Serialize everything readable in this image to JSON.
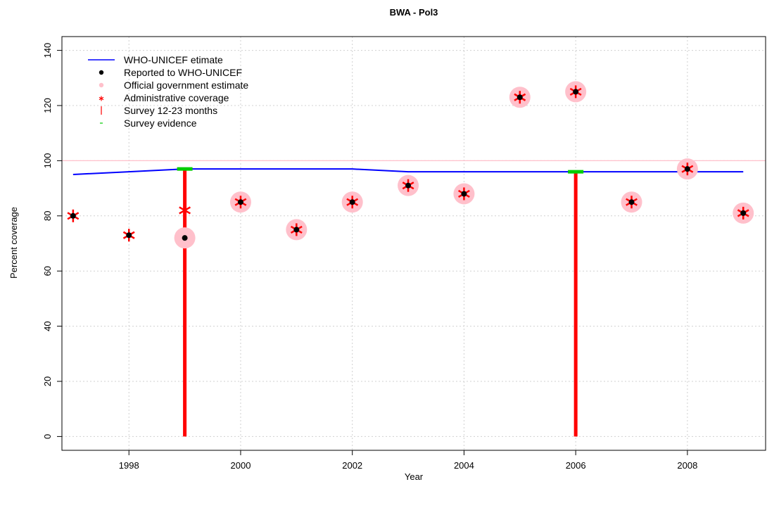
{
  "chart_data": {
    "type": "scatter",
    "title": "BWA  -  Pol3",
    "xlabel": "Year",
    "ylabel": "Percent coverage",
    "xlim": [
      1996.8,
      2009.4
    ],
    "ylim": [
      -5,
      145
    ],
    "x_ticks": [
      1998,
      2000,
      2002,
      2004,
      2006,
      2008
    ],
    "y_ticks": [
      0,
      20,
      40,
      60,
      80,
      100,
      120,
      140
    ],
    "grid": true,
    "legend_position": "top-left",
    "reference_line": {
      "y": 100,
      "color": "#ffc0cb"
    },
    "legend": [
      {
        "label": "WHO-UNICEF etimate",
        "symbol": "line",
        "color": "#0000ff"
      },
      {
        "label": "Reported to WHO-UNICEF",
        "symbol": "dot",
        "color": "#000000"
      },
      {
        "label": "Official government estimate",
        "symbol": "dot",
        "color": "#ffc0cb"
      },
      {
        "label": "Administrative coverage",
        "symbol": "star",
        "color": "#ff0000"
      },
      {
        "label": "Survey 12-23 months",
        "symbol": "bar",
        "color": "#ff0000"
      },
      {
        "label": "Survey evidence",
        "symbol": "dash",
        "color": "#00cc00"
      }
    ],
    "series": [
      {
        "name": "WHO-UNICEF etimate",
        "kind": "line",
        "color": "#0000ff",
        "x": [
          1997,
          1998,
          1999,
          2000,
          2001,
          2002,
          2003,
          2004,
          2005,
          2006,
          2007,
          2008,
          2009
        ],
        "values": [
          95,
          96,
          97,
          97,
          97,
          97,
          96,
          96,
          96,
          96,
          96,
          96,
          96
        ]
      },
      {
        "name": "Reported to WHO-UNICEF",
        "kind": "point",
        "color": "#000000",
        "x": [
          1997,
          1998,
          1999,
          2000,
          2001,
          2002,
          2003,
          2004,
          2005,
          2006,
          2007,
          2008,
          2009
        ],
        "values": [
          80,
          73,
          72,
          85,
          75,
          85,
          91,
          88,
          123,
          125,
          85,
          97,
          81
        ]
      },
      {
        "name": "Official government estimate",
        "kind": "point",
        "color": "#ffc0cb",
        "x": [
          1999,
          2000,
          2001,
          2002,
          2003,
          2004,
          2005,
          2006,
          2007,
          2008,
          2009
        ],
        "values": [
          72,
          85,
          75,
          85,
          91,
          88,
          123,
          125,
          85,
          97,
          81
        ]
      },
      {
        "name": "Administrative coverage",
        "kind": "star",
        "color": "#ff0000",
        "x": [
          1997,
          1998,
          1999,
          2000,
          2001,
          2002,
          2003,
          2004,
          2005,
          2006,
          2007,
          2008,
          2009
        ],
        "values": [
          80,
          73,
          82,
          85,
          75,
          85,
          91,
          88,
          123,
          125,
          85,
          97,
          81
        ]
      },
      {
        "name": "Survey 12-23 months",
        "kind": "bar",
        "color": "#ff0000",
        "x": [
          1999,
          2006
        ],
        "values": [
          97,
          96
        ]
      },
      {
        "name": "Survey evidence",
        "kind": "dash",
        "color": "#00cc00",
        "x": [
          1999,
          2006
        ],
        "values": [
          97,
          96
        ]
      }
    ]
  }
}
